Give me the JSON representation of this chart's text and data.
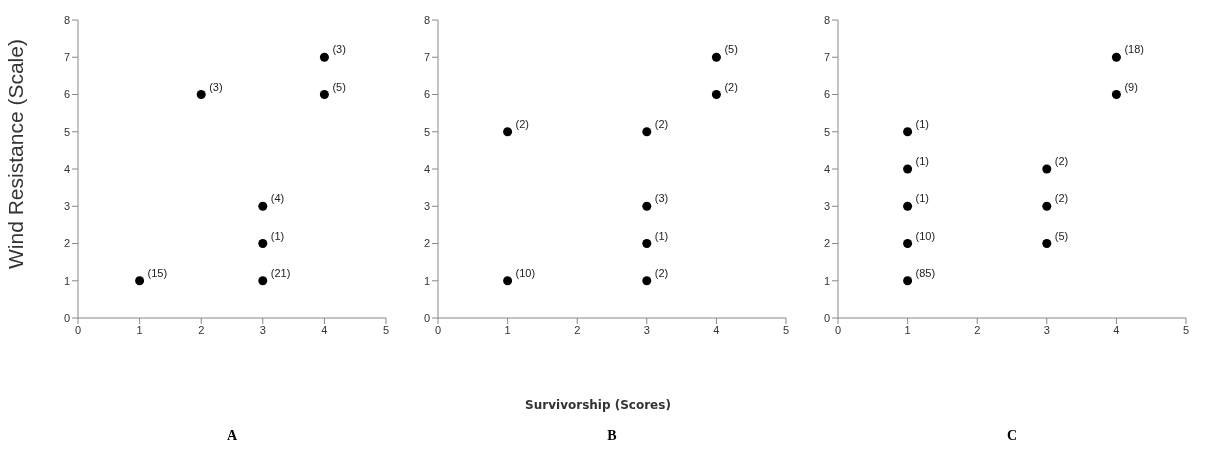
{
  "chart_data": [
    {
      "type": "scatter",
      "title": "A",
      "ylabel": "Wind Resistance (Scale)",
      "x": [
        1,
        2,
        3,
        3,
        3,
        4,
        4
      ],
      "values": [
        1,
        6,
        1,
        2,
        3,
        6,
        7
      ],
      "color": "#000000",
      "marker": "circle",
      "xlim": [
        0,
        5
      ],
      "xticks": [
        0,
        1,
        2,
        3,
        4,
        5
      ],
      "ylim": [
        0,
        8
      ],
      "yticks": [
        0,
        1,
        2,
        3,
        4,
        5,
        6,
        7,
        8
      ],
      "annotations": [
        {
          "text": "(15)",
          "x": 1,
          "y": 1
        },
        {
          "text": "(3)",
          "x": 2,
          "y": 6
        },
        {
          "text": "(21)",
          "x": 3,
          "y": 1
        },
        {
          "text": "(1)",
          "x": 3,
          "y": 2
        },
        {
          "text": "(4)",
          "x": 3,
          "y": 3
        },
        {
          "text": "(5)",
          "x": 4,
          "y": 6
        },
        {
          "text": "(3)",
          "x": 4,
          "y": 7
        }
      ]
    },
    {
      "type": "scatter",
      "title": "B",
      "xlabel": "Survivorship (Scores)",
      "x": [
        1,
        1,
        3,
        3,
        3,
        3,
        4,
        4
      ],
      "values": [
        1,
        5,
        1,
        2,
        3,
        5,
        6,
        7
      ],
      "color": "#000000",
      "marker": "circle",
      "xlim": [
        0,
        5
      ],
      "xticks": [
        0,
        1,
        2,
        3,
        4,
        5
      ],
      "ylim": [
        0,
        8
      ],
      "yticks": [
        0,
        1,
        2,
        3,
        4,
        5,
        6,
        7,
        8
      ],
      "annotations": [
        {
          "text": "(10)",
          "x": 1,
          "y": 1
        },
        {
          "text": "(2)",
          "x": 1,
          "y": 5
        },
        {
          "text": "(2)",
          "x": 3,
          "y": 1
        },
        {
          "text": "(1)",
          "x": 3,
          "y": 2
        },
        {
          "text": "(3)",
          "x": 3,
          "y": 3
        },
        {
          "text": "(2)",
          "x": 3,
          "y": 5
        },
        {
          "text": "(2)",
          "x": 4,
          "y": 6
        },
        {
          "text": "(5)",
          "x": 4,
          "y": 7
        }
      ]
    },
    {
      "type": "scatter",
      "title": "C",
      "x": [
        1,
        1,
        1,
        1,
        1,
        3,
        3,
        3,
        4,
        4
      ],
      "values": [
        1,
        2,
        3,
        4,
        5,
        2,
        3,
        4,
        6,
        7
      ],
      "color": "#000000",
      "marker": "circle",
      "xlim": [
        0,
        5
      ],
      "xticks": [
        0,
        1,
        2,
        3,
        4,
        5
      ],
      "ylim": [
        0,
        8
      ],
      "yticks": [
        0,
        1,
        2,
        3,
        4,
        5,
        6,
        7,
        8
      ],
      "annotations": [
        {
          "text": "(85)",
          "x": 1,
          "y": 1
        },
        {
          "text": "(10)",
          "x": 1,
          "y": 2
        },
        {
          "text": "(1)",
          "x": 1,
          "y": 3
        },
        {
          "text": "(1)",
          "x": 1,
          "y": 4
        },
        {
          "text": "(1)",
          "x": 1,
          "y": 5
        },
        {
          "text": "(5)",
          "x": 3,
          "y": 2
        },
        {
          "text": "(2)",
          "x": 3,
          "y": 3
        },
        {
          "text": "(2)",
          "x": 3,
          "y": 4
        },
        {
          "text": "(9)",
          "x": 4,
          "y": 6
        },
        {
          "text": "(18)",
          "x": 4,
          "y": 7
        }
      ]
    }
  ]
}
